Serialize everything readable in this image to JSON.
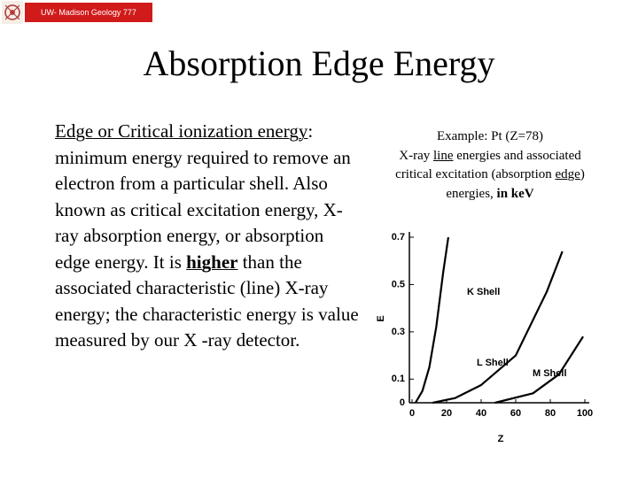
{
  "header": {
    "badge": "UW- Madison Geology  777"
  },
  "title": "Absorption Edge Energy",
  "body": {
    "term": "Edge or Critical ionization energy",
    "text1": ": minimum energy required to remove an electron from a particular shell. Also known as critical excitation energy, X-ray absorption energy, or absorption edge energy. It is ",
    "emphasis": "higher",
    "text2": " than the associated characteristic (line) X-ray energy; the characteristic energy is value measured by our X -ray detector."
  },
  "caption": {
    "line1": "Example: Pt (Z=78)",
    "a": "X-ray ",
    "b": "line",
    "c": " energies and associated critical excitation (absorption ",
    "d": "edge",
    "e": ") energies, ",
    "f": "in keV"
  },
  "chart_data": {
    "type": "line",
    "x_label": "Z",
    "y_label": "E",
    "xlim": [
      0,
      100
    ],
    "ylim": [
      0,
      0.7
    ],
    "xticks": [
      0,
      20,
      40,
      60,
      80,
      100
    ],
    "yticks": [
      0,
      0.1,
      0.3,
      0.5,
      0.7
    ],
    "color": "#000000",
    "series": [
      {
        "name": "K Shell",
        "x": [
          2,
          6,
          10,
          14,
          18,
          21
        ],
        "values": [
          0,
          0.05,
          0.15,
          0.32,
          0.55,
          0.7
        ]
      },
      {
        "name": "L Shell",
        "x": [
          12,
          25,
          40,
          60,
          78,
          87
        ],
        "values": [
          0,
          0.02,
          0.075,
          0.2,
          0.47,
          0.64
        ]
      },
      {
        "name": "M Shell",
        "x": [
          48,
          70,
          85,
          99
        ],
        "values": [
          0,
          0.04,
          0.12,
          0.28
        ]
      }
    ]
  }
}
